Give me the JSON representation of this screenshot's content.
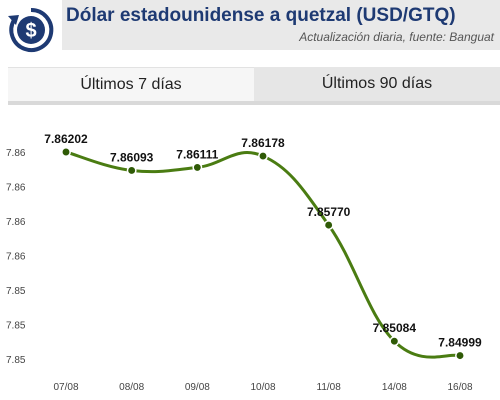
{
  "header": {
    "title": "Dólar estadounidense a quetzal (USD/GTQ)",
    "subtitle": "Actualización diaria, fuente: Banguat",
    "logo_icon": "dollar-exchange-icon",
    "logo_color": "#1e3a73"
  },
  "tabs": [
    {
      "label": "Últimos 7 días",
      "active": true
    },
    {
      "label": "Últimos 90 días",
      "active": false
    }
  ],
  "chart_data": {
    "type": "line",
    "categories": [
      "07/08",
      "08/08",
      "09/08",
      "10/08",
      "11/08",
      "14/08",
      "16/08"
    ],
    "values": [
      7.86202,
      7.86093,
      7.86111,
      7.86178,
      7.8577,
      7.85084,
      7.84999
    ],
    "value_labels": [
      "7.86202",
      "7.86093",
      "7.86111",
      "7.86178",
      "7.85770",
      "7.85084",
      "7.84999"
    ],
    "y_ticks": [
      "7.86",
      "7.86",
      "7.86",
      "7.86",
      "7.85",
      "7.85",
      "7.85"
    ],
    "y_tick_values": [
      7.86202,
      7.85998,
      7.85794,
      7.8559,
      7.85387,
      7.85183,
      7.84979
    ],
    "ylim": [
      7.84979,
      7.86202
    ],
    "line_color": "#4a7c12",
    "marker_color": "#2f5a06",
    "grid": false,
    "smooth": true
  }
}
